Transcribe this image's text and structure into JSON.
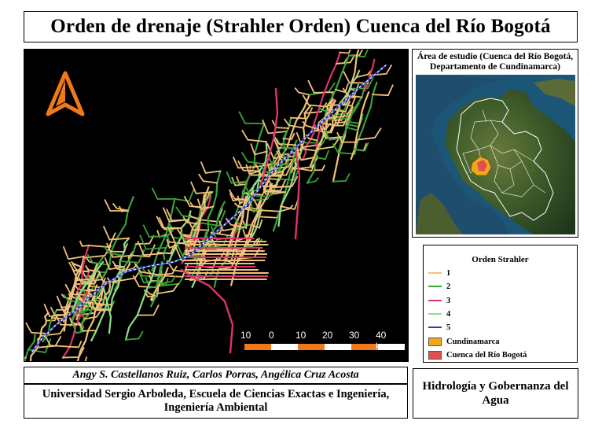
{
  "title": "Orden de drenaje (Strahler Orden) Cuenca del Río Bogotá",
  "inset": {
    "caption_line1": "Área de estudio (Cuenca del Río Bogotá,",
    "caption_line2": "Departamento de Cundinamarca)"
  },
  "legend": {
    "title": "Orden Strahler",
    "items": [
      {
        "label": "1",
        "color": "#f2c27b",
        "kind": "line"
      },
      {
        "label": "2",
        "color": "#3aa33a",
        "kind": "line"
      },
      {
        "label": "3",
        "color": "#e0336a",
        "kind": "line"
      },
      {
        "label": "4",
        "color": "#8ee08a",
        "kind": "line"
      },
      {
        "label": "5",
        "color": "#2b3fb3",
        "kind": "line"
      },
      {
        "label": "Cundinamarca",
        "color": "#f0a818",
        "kind": "fill"
      },
      {
        "label": "Cuenca del Río Bogotá",
        "color": "#e05050",
        "kind": "fill"
      }
    ]
  },
  "scale_bar": {
    "labels": [
      "10",
      "0",
      "10",
      "20",
      "30",
      "40 km"
    ]
  },
  "north_arrow": {
    "icon": "north-arrow-icon",
    "color": "#f07a1a"
  },
  "authors": "Angy S. Castellanos Ruiz, Carlos Porras, Angélica Cruz Acosta",
  "university": {
    "line1": "Universidad Sergio Arboleda, Escuela de Ciencias Exactas e Ingeniería,",
    "line2": "Ingeniería Ambiental"
  },
  "course": "Hidrología y Gobernanza del Agua"
}
